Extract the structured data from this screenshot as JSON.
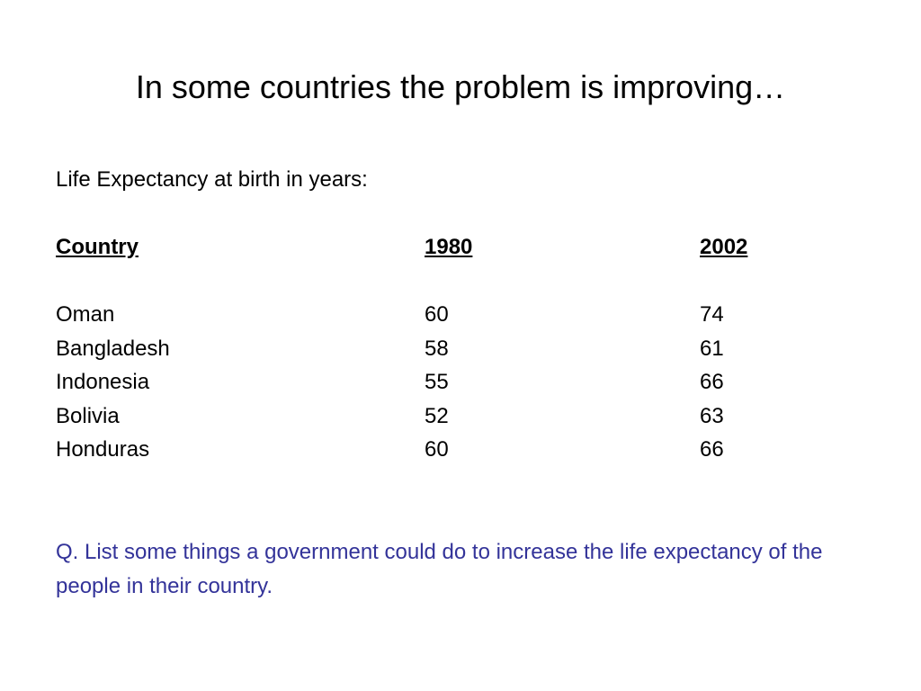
{
  "slide": {
    "title": "In some countries the problem is improving…",
    "subtitle": "Life Expectancy at birth in years:",
    "table": {
      "headers": [
        "Country",
        "1980",
        "2002"
      ],
      "rows": [
        [
          "Oman",
          "60",
          "74"
        ],
        [
          "Bangladesh",
          "58",
          "61"
        ],
        [
          "Indonesia",
          "55",
          "66"
        ],
        [
          "Bolivia",
          "52",
          "63"
        ],
        [
          "Honduras",
          "60",
          "66"
        ]
      ]
    },
    "question": "Q. List some things a government could do to increase the life expectancy of the people in their country.",
    "colors": {
      "text": "#000000",
      "question": "#333399",
      "background": "#ffffff"
    }
  }
}
